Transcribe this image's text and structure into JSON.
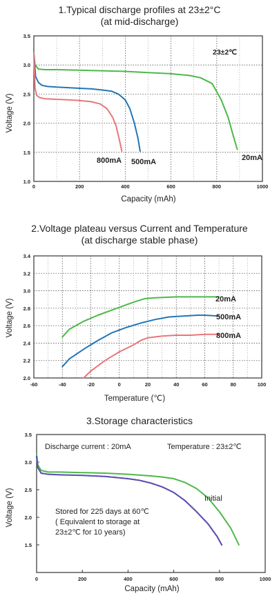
{
  "chart_data": [
    {
      "type": "line",
      "title": "1.Typical discharge profiles at 23±2°C",
      "subtitle": "(at mid-discharge)",
      "xlabel": "Capacity (mAh)",
      "ylabel": "Voltage (V)",
      "xlim": [
        0,
        1000
      ],
      "ylim": [
        1.0,
        3.5
      ],
      "x_ticks": [
        "0",
        "200",
        "400",
        "600",
        "800",
        "1000"
      ],
      "y_ticks": [
        "1.0",
        "1.5",
        "2.0",
        "2.5",
        "3.0",
        "3.5"
      ],
      "grid": true,
      "annotation": "23±2℃",
      "series": [
        {
          "name": "20mA",
          "color": "#4cb848",
          "x": [
            0,
            5,
            20,
            50,
            100,
            200,
            300,
            400,
            500,
            600,
            680,
            730,
            780,
            820,
            850,
            875,
            890
          ],
          "y": [
            3.2,
            3.0,
            2.93,
            2.92,
            2.92,
            2.91,
            2.9,
            2.89,
            2.87,
            2.85,
            2.82,
            2.78,
            2.68,
            2.4,
            2.1,
            1.75,
            1.55
          ]
        },
        {
          "name": "500mA",
          "color": "#2176b5",
          "x": [
            0,
            8,
            20,
            35,
            60,
            100,
            150,
            200,
            250,
            300,
            340,
            370,
            400,
            420,
            440,
            455,
            465
          ],
          "y": [
            3.2,
            2.8,
            2.7,
            2.65,
            2.63,
            2.62,
            2.61,
            2.6,
            2.59,
            2.57,
            2.55,
            2.5,
            2.4,
            2.25,
            2.0,
            1.75,
            1.52
          ]
        },
        {
          "name": "800mA",
          "color": "#e8767a",
          "x": [
            0,
            5,
            12,
            25,
            50,
            100,
            150,
            200,
            250,
            290,
            320,
            345,
            360,
            375,
            385
          ],
          "y": [
            3.2,
            2.6,
            2.48,
            2.44,
            2.42,
            2.41,
            2.4,
            2.39,
            2.37,
            2.33,
            2.25,
            2.1,
            1.95,
            1.7,
            1.52
          ]
        }
      ]
    },
    {
      "type": "line",
      "title": "2.Voltage plateau versus Current and Temperature",
      "subtitle": "(at discharge stable phase)",
      "xlabel": "Temperature (℃)",
      "ylabel": "Voltage (V)",
      "xlim": [
        -60,
        100
      ],
      "ylim": [
        2.0,
        3.4
      ],
      "x_ticks": [
        "-60",
        "-40",
        "-20",
        "0",
        "20",
        "40",
        "60",
        "80",
        "100"
      ],
      "y_ticks": [
        "2.0",
        "2.2",
        "2.4",
        "2.6",
        "2.8",
        "3.0",
        "3.2",
        "3.4"
      ],
      "grid": true,
      "series": [
        {
          "name": "20mA",
          "color": "#4cb848",
          "x": [
            -40,
            -35,
            -25,
            -15,
            -5,
            5,
            12,
            18,
            25,
            40,
            60,
            70
          ],
          "y": [
            2.47,
            2.56,
            2.65,
            2.72,
            2.78,
            2.84,
            2.88,
            2.91,
            2.92,
            2.93,
            2.93,
            2.93
          ]
        },
        {
          "name": "500mA",
          "color": "#2176b5",
          "x": [
            -40,
            -35,
            -25,
            -15,
            -5,
            5,
            15,
            25,
            35,
            45,
            55,
            60,
            70
          ],
          "y": [
            2.13,
            2.22,
            2.33,
            2.43,
            2.52,
            2.58,
            2.63,
            2.67,
            2.7,
            2.71,
            2.72,
            2.72,
            2.71
          ]
        },
        {
          "name": "800mA",
          "color": "#e8767a",
          "x": [
            -25,
            -20,
            -10,
            0,
            10,
            15,
            20,
            30,
            40,
            50,
            60,
            70
          ],
          "y": [
            2.0,
            2.08,
            2.2,
            2.3,
            2.38,
            2.43,
            2.46,
            2.48,
            2.49,
            2.49,
            2.5,
            2.5
          ]
        }
      ]
    },
    {
      "type": "line",
      "title": "3.Storage characteristics",
      "xlabel": "Capacity (mAh)",
      "ylabel": "Voltage (V)",
      "xlim": [
        0,
        1000
      ],
      "ylim": [
        1.0,
        3.5
      ],
      "x_ticks": [
        "0",
        "200",
        "400",
        "600",
        "800",
        "1000"
      ],
      "y_ticks": [
        "1.5",
        "2.0",
        "2.5",
        "3.0",
        "3.5"
      ],
      "grid": false,
      "annotations": [
        "Discharge current : 20mA",
        "Temperature : 23±2℃",
        "Stored for 225 days at 60℃",
        "( Equivalent to storage at",
        "23±2℃ for 10 years)"
      ],
      "series": [
        {
          "name": "Initial",
          "color": "#4cb848",
          "x": [
            0,
            5,
            20,
            50,
            100,
            200,
            300,
            400,
            500,
            550,
            600,
            650,
            700,
            750,
            800,
            850,
            885
          ],
          "y": [
            3.15,
            2.95,
            2.85,
            2.82,
            2.82,
            2.81,
            2.8,
            2.78,
            2.75,
            2.73,
            2.7,
            2.63,
            2.52,
            2.35,
            2.1,
            1.8,
            1.5
          ]
        },
        {
          "name": "",
          "color": "#5a4fb0",
          "dashed": true,
          "x": [
            0,
            5,
            20,
            50,
            100,
            200,
            300,
            400,
            450,
            500,
            550,
            600,
            650,
            700,
            750,
            790,
            810
          ],
          "y": [
            3.1,
            2.9,
            2.8,
            2.78,
            2.77,
            2.76,
            2.74,
            2.7,
            2.67,
            2.62,
            2.55,
            2.45,
            2.3,
            2.1,
            1.88,
            1.65,
            1.5
          ]
        }
      ]
    }
  ]
}
